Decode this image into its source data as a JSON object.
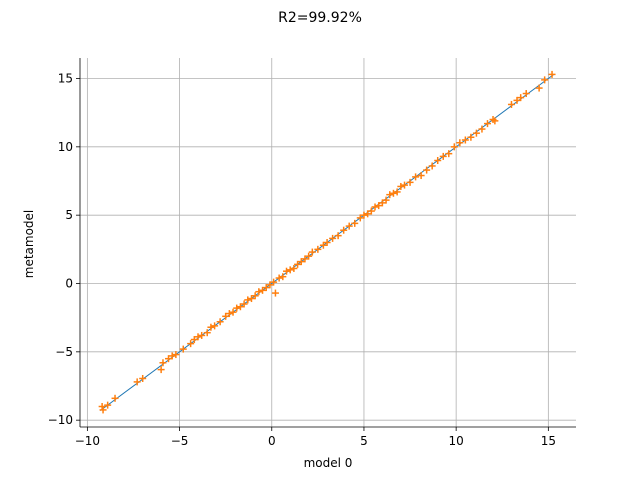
{
  "chart_data": {
    "type": "scatter",
    "title": "R2=99.92%",
    "xlabel": "model 0",
    "ylabel": "metamodel",
    "xlim": [
      -10.4,
      16.5
    ],
    "ylim": [
      -10.5,
      16.5
    ],
    "xticks": [
      -10,
      -5,
      0,
      5,
      10,
      15
    ],
    "yticks": [
      -10,
      -5,
      0,
      5,
      10,
      15
    ],
    "grid": true,
    "line_color": "#1f77b4",
    "marker_color": "#ff7f0e",
    "series": [
      {
        "values_desc": "identity",
        "type": "line",
        "x": [
          -9.3,
          15.3
        ],
        "y": [
          -9.3,
          15.3
        ]
      },
      {
        "type": "scatter",
        "x": [
          -9.2,
          -9.15,
          -8.9,
          -8.5,
          -7.3,
          -7.0,
          -6.0,
          -5.9,
          -5.6,
          -5.4,
          -5.2,
          -4.8,
          -4.4,
          -4.2,
          -4.0,
          -3.8,
          -3.5,
          -3.3,
          -3.1,
          -2.8,
          -2.5,
          -2.3,
          -2.1,
          -1.9,
          -1.7,
          -1.5,
          -1.3,
          -1.1,
          -0.9,
          -0.7,
          -0.5,
          -0.3,
          -0.1,
          0.1,
          0.2,
          0.4,
          0.6,
          0.8,
          1.0,
          1.2,
          1.4,
          1.6,
          1.8,
          2.0,
          2.2,
          2.5,
          2.8,
          3.0,
          3.3,
          3.6,
          3.9,
          4.2,
          4.5,
          4.8,
          5.0,
          5.2,
          5.4,
          5.6,
          5.8,
          6.0,
          6.2,
          6.4,
          6.6,
          6.8,
          7.0,
          7.2,
          7.5,
          7.8,
          8.1,
          8.4,
          8.7,
          9.0,
          9.3,
          9.6,
          9.9,
          10.2,
          10.5,
          10.8,
          11.1,
          11.4,
          11.7,
          12.0,
          12.1,
          13.0,
          13.3,
          13.5,
          13.8,
          14.5,
          14.8,
          15.2
        ],
        "y": [
          -9.0,
          -9.25,
          -8.9,
          -8.4,
          -7.2,
          -6.95,
          -6.3,
          -5.8,
          -5.5,
          -5.3,
          -5.2,
          -4.8,
          -4.4,
          -4.1,
          -3.9,
          -3.8,
          -3.6,
          -3.2,
          -3.1,
          -2.8,
          -2.4,
          -2.2,
          -2.1,
          -1.8,
          -1.7,
          -1.5,
          -1.2,
          -1.1,
          -0.9,
          -0.6,
          -0.5,
          -0.3,
          -0.1,
          0.1,
          -0.7,
          0.4,
          0.5,
          0.9,
          1.0,
          1.1,
          1.4,
          1.6,
          1.8,
          2.0,
          2.3,
          2.5,
          2.8,
          3.0,
          3.3,
          3.5,
          3.9,
          4.2,
          4.4,
          4.8,
          5.0,
          5.1,
          5.3,
          5.6,
          5.7,
          5.9,
          6.1,
          6.5,
          6.6,
          6.7,
          7.1,
          7.2,
          7.4,
          7.8,
          7.9,
          8.3,
          8.6,
          9.0,
          9.3,
          9.5,
          10.0,
          10.3,
          10.5,
          10.7,
          11.0,
          11.3,
          11.7,
          12.0,
          11.9,
          13.1,
          13.4,
          13.6,
          13.9,
          14.3,
          14.9,
          15.3
        ]
      }
    ]
  }
}
